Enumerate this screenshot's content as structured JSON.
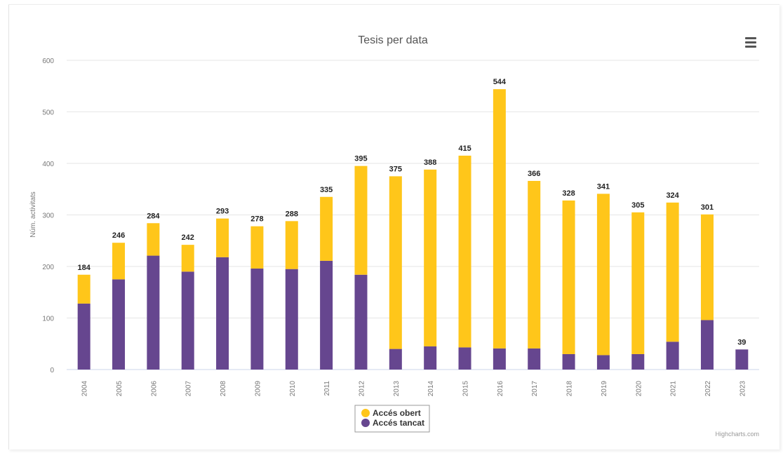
{
  "chart_data": {
    "type": "bar",
    "stacked": true,
    "title": "Tesis per data",
    "xlabel": "",
    "ylabel": "Núm. activitats",
    "ylim": [
      0,
      600
    ],
    "yticks": [
      0,
      100,
      200,
      300,
      400,
      500,
      600
    ],
    "grid": true,
    "legend_position": "bottom-center",
    "categories": [
      "2004",
      "2005",
      "2006",
      "2007",
      "2008",
      "2009",
      "2010",
      "2011",
      "2012",
      "2013",
      "2014",
      "2015",
      "2016",
      "2017",
      "2018",
      "2019",
      "2020",
      "2021",
      "2022",
      "2023"
    ],
    "totals": [
      184,
      246,
      284,
      242,
      293,
      278,
      288,
      335,
      395,
      375,
      388,
      415,
      544,
      366,
      328,
      341,
      305,
      324,
      301,
      39
    ],
    "series": [
      {
        "name": "Accés obert",
        "color": "#FFC61A",
        "values": [
          56,
          71,
          63,
          52,
          75,
          82,
          93,
          124,
          211,
          335,
          343,
          372,
          503,
          325,
          298,
          313,
          275,
          270,
          205,
          0
        ]
      },
      {
        "name": "Accés tancat",
        "color": "#66468F",
        "values": [
          128,
          175,
          221,
          190,
          218,
          196,
          195,
          211,
          184,
          40,
          45,
          43,
          41,
          41,
          30,
          28,
          30,
          54,
          96,
          39
        ]
      }
    ]
  },
  "credits": "Highcharts.com",
  "menu_icon": "hamburger-menu-icon"
}
